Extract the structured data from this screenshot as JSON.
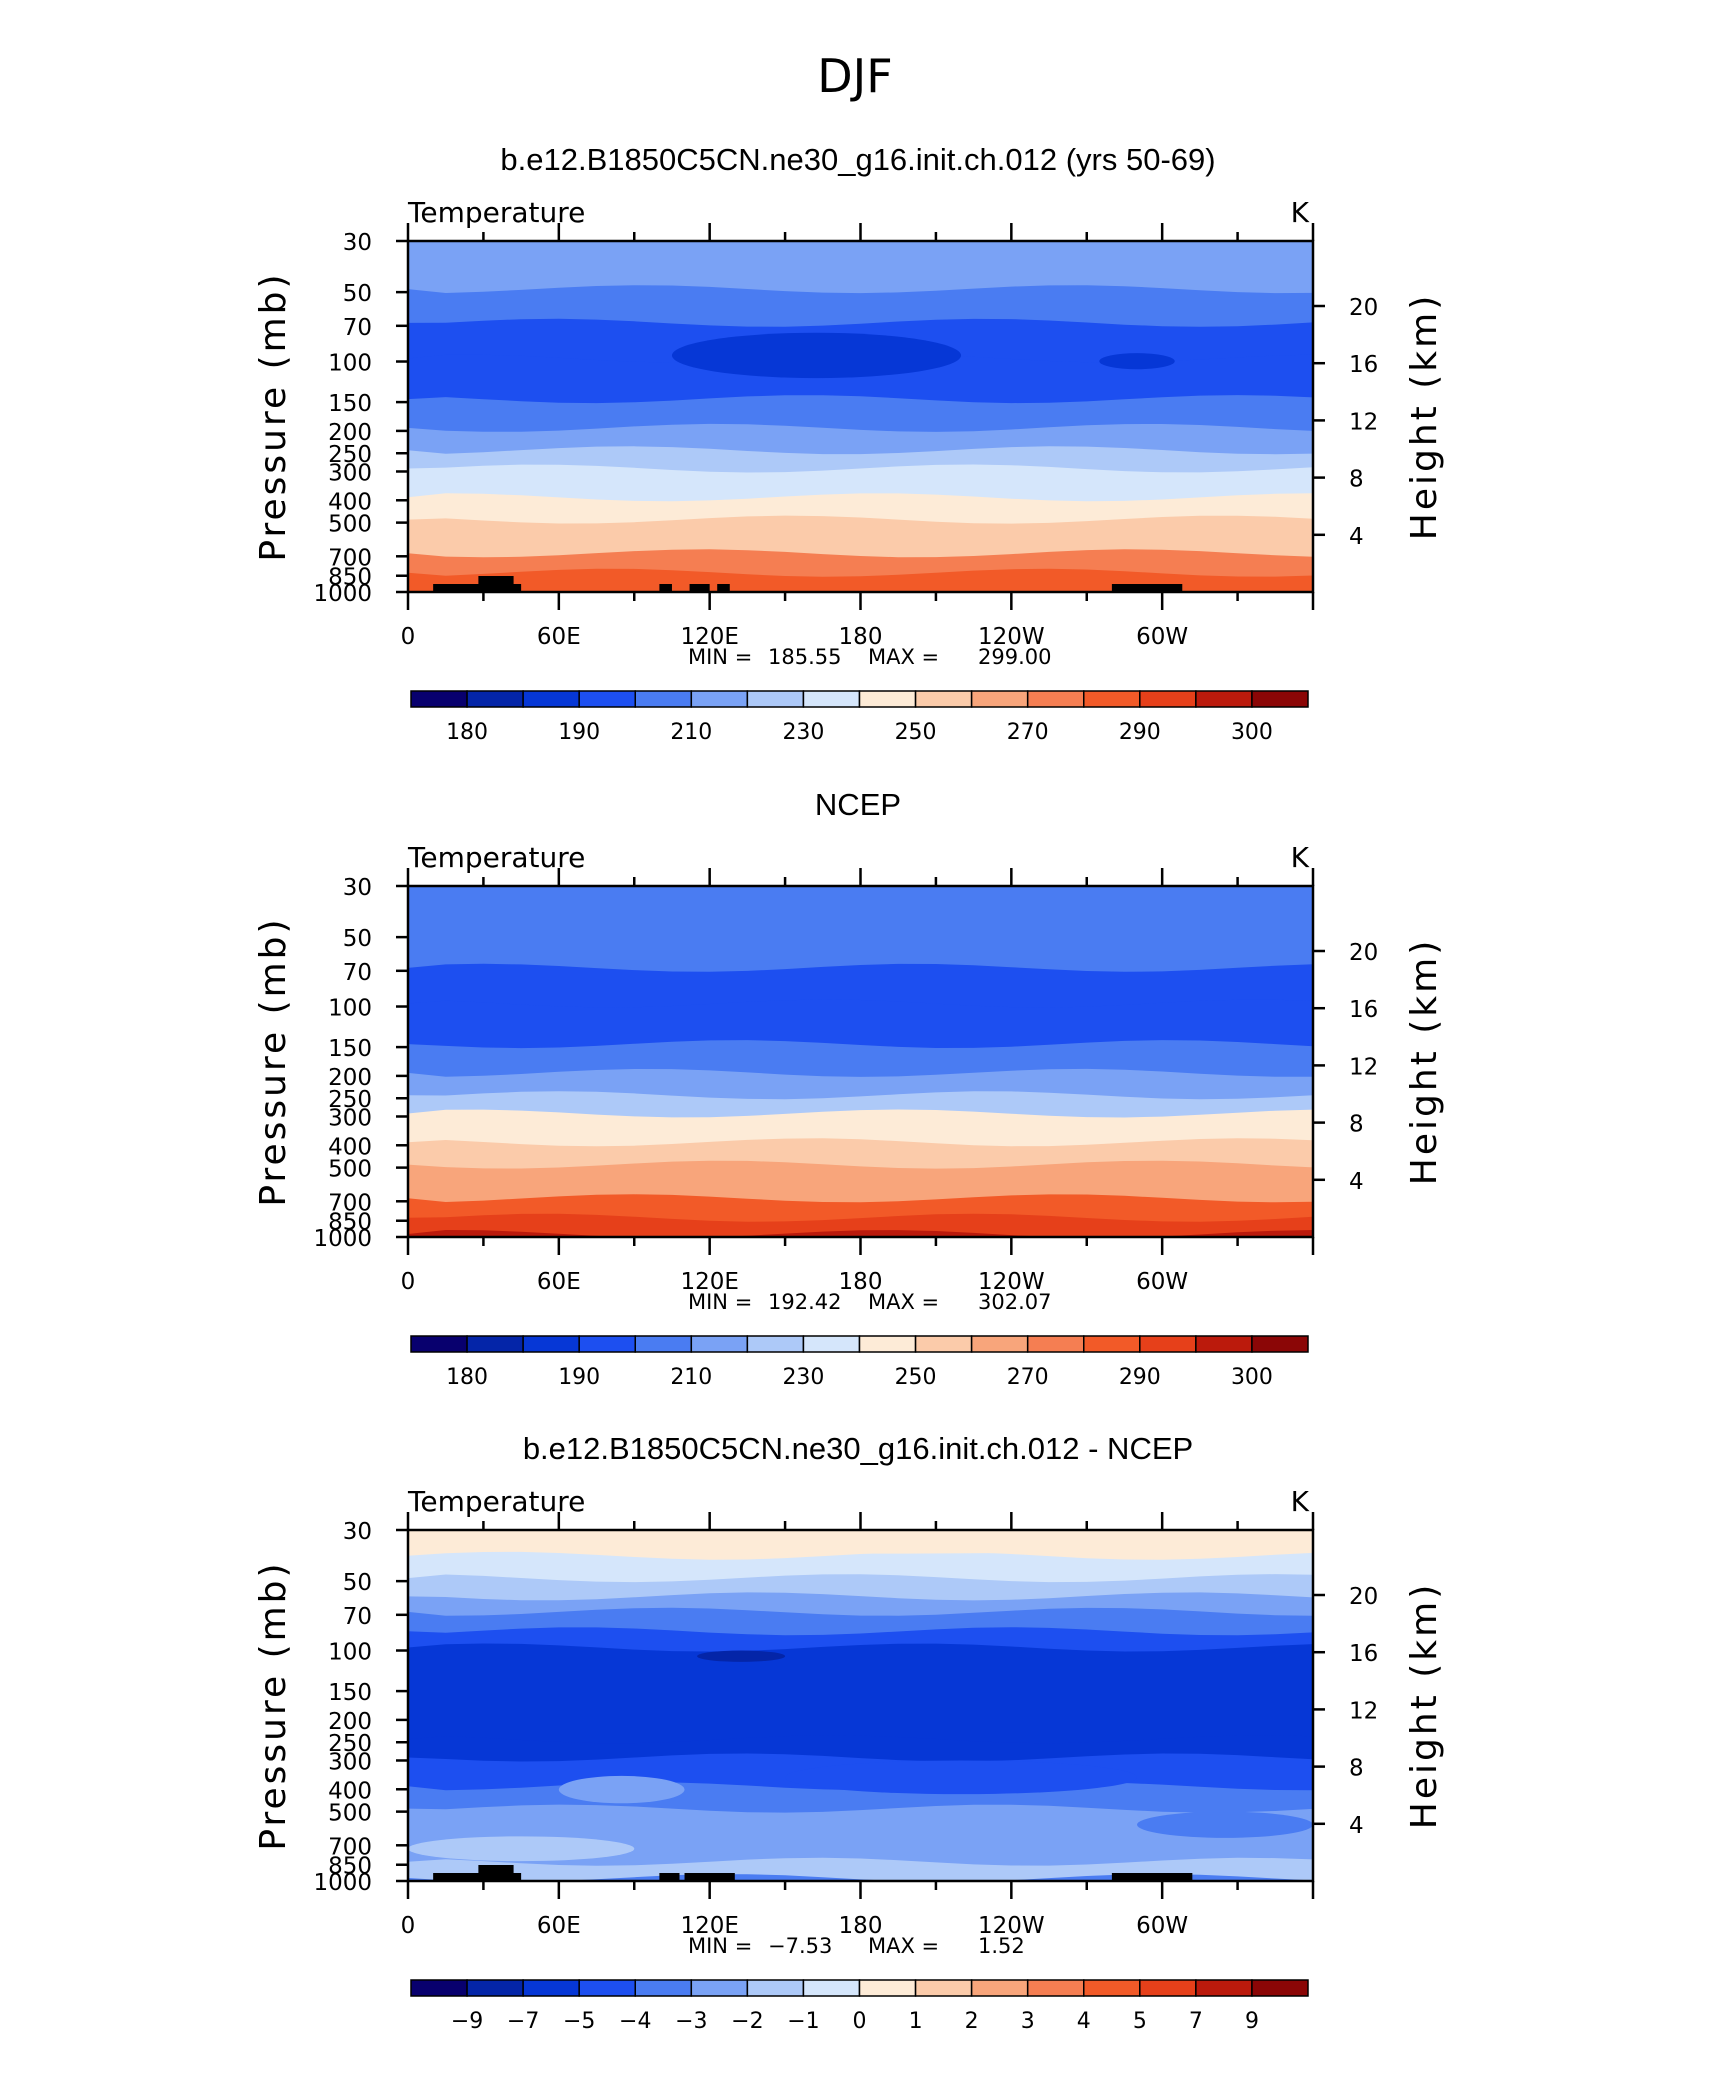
{
  "figure_title": "DJF",
  "chart_data": [
    {
      "type": "heatmap",
      "title": "b.e12.B1850C5CN.ne30_g16.init.ch.012 (yrs 50-69)",
      "left_string": "Temperature",
      "right_string": "K",
      "ylabel": "Pressure (mb)",
      "y2label": "Height (km)",
      "pressure_ticks": [
        "30",
        "50",
        "70",
        "100",
        "150",
        "200",
        "250",
        "300",
        "400",
        "500",
        "700",
        "850",
        "1000"
      ],
      "height_ticks": [
        "20",
        "16",
        "12",
        "8",
        "4"
      ],
      "longitude_ticks": [
        "0",
        "60E",
        "120E",
        "180",
        "120W",
        "60W"
      ],
      "stats": {
        "min_label": "MIN =",
        "min_value": "185.55",
        "max_label": "MAX =",
        "max_value": "299.00"
      },
      "colorbar_labels": [
        "180",
        "190",
        "210",
        "230",
        "250",
        "270",
        "290",
        "300"
      ],
      "level_colors": [
        "#08006e",
        "#0425a8",
        "#0637d6",
        "#1d4ff0",
        "#4a7cf2",
        "#7aa2f5",
        "#adc9f8",
        "#d5e6fb",
        "#fdebd7",
        "#fbcbaa",
        "#f8a57b",
        "#f57e52",
        "#f25a28",
        "#e6401a",
        "#bb1a0c",
        "#8b0606"
      ],
      "profile": [
        [
          "30",
          "#7aa2f5"
        ],
        [
          "50",
          "#4a7cf2"
        ],
        [
          "70",
          "#1d4ff0"
        ],
        [
          "100",
          "#1d4ff0"
        ],
        [
          "150",
          "#4a7cf2"
        ],
        [
          "200",
          "#7aa2f5"
        ],
        [
          "250",
          "#adc9f8"
        ],
        [
          "300",
          "#d5e6fb"
        ],
        [
          "400",
          "#fdebd7"
        ],
        [
          "500",
          "#fbcbaa"
        ],
        [
          "700",
          "#f57e52"
        ],
        [
          "850",
          "#f25a28"
        ],
        [
          "1000",
          "#f25a28"
        ]
      ],
      "features": [
        {
          "lon": [
            105,
            220
          ],
          "p": [
            75,
            118
          ],
          "color": "#0637d6"
        },
        {
          "lon": [
            275,
            305
          ],
          "p": [
            92,
            108
          ],
          "color": "#0637d6"
        }
      ],
      "topography": [
        [
          10,
          45
        ],
        [
          28,
          42
        ],
        [
          100,
          105
        ],
        [
          112,
          120
        ],
        [
          123,
          128
        ],
        [
          280,
          308
        ]
      ]
    },
    {
      "type": "heatmap",
      "title": "NCEP",
      "left_string": "Temperature",
      "right_string": "K",
      "ylabel": "Pressure (mb)",
      "y2label": "Height (km)",
      "pressure_ticks": [
        "30",
        "50",
        "70",
        "100",
        "150",
        "200",
        "250",
        "300",
        "400",
        "500",
        "700",
        "850",
        "1000"
      ],
      "height_ticks": [
        "20",
        "16",
        "12",
        "8",
        "4"
      ],
      "longitude_ticks": [
        "0",
        "60E",
        "120E",
        "180",
        "120W",
        "60W"
      ],
      "stats": {
        "min_label": "MIN =",
        "min_value": "192.42",
        "max_label": "MAX =",
        "max_value": "302.07"
      },
      "colorbar_labels": [
        "180",
        "190",
        "210",
        "230",
        "250",
        "270",
        "290",
        "300"
      ],
      "level_colors": [
        "#08006e",
        "#0425a8",
        "#0637d6",
        "#1d4ff0",
        "#4a7cf2",
        "#7aa2f5",
        "#adc9f8",
        "#d5e6fb",
        "#fdebd7",
        "#fbcbaa",
        "#f8a57b",
        "#f57e52",
        "#f25a28",
        "#e6401a",
        "#bb1a0c",
        "#8b0606"
      ],
      "profile": [
        [
          "30",
          "#4a7cf2"
        ],
        [
          "50",
          "#4a7cf2"
        ],
        [
          "70",
          "#1d4ff0"
        ],
        [
          "100",
          "#1d4ff0"
        ],
        [
          "150",
          "#4a7cf2"
        ],
        [
          "200",
          "#7aa2f5"
        ],
        [
          "250",
          "#adc9f8"
        ],
        [
          "300",
          "#fdebd7"
        ],
        [
          "400",
          "#fbcbaa"
        ],
        [
          "500",
          "#f8a57b"
        ],
        [
          "700",
          "#f25a28"
        ],
        [
          "850",
          "#e6401a"
        ],
        [
          "1000",
          "#bb1a0c"
        ]
      ],
      "features": [],
      "topography": []
    },
    {
      "type": "heatmap",
      "title": "b.e12.B1850C5CN.ne30_g16.init.ch.012 - NCEP",
      "left_string": "Temperature",
      "right_string": "K",
      "ylabel": "Pressure (mb)",
      "y2label": "Height (km)",
      "pressure_ticks": [
        "30",
        "50",
        "70",
        "100",
        "150",
        "200",
        "250",
        "300",
        "400",
        "500",
        "700",
        "850",
        "1000"
      ],
      "height_ticks": [
        "20",
        "16",
        "12",
        "8",
        "4"
      ],
      "longitude_ticks": [
        "0",
        "60E",
        "120E",
        "180",
        "120W",
        "60W"
      ],
      "stats": {
        "min_label": "MIN =",
        "min_value": "−7.53",
        "max_label": "MAX =",
        "max_value": "1.52"
      },
      "colorbar_labels": [
        "−9",
        "−7",
        "−5",
        "−4",
        "−3",
        "−2",
        "−1",
        "0",
        "1",
        "2",
        "3",
        "4",
        "5",
        "7",
        "9"
      ],
      "level_colors": [
        "#08006e",
        "#0425a8",
        "#0637d6",
        "#1d4ff0",
        "#4a7cf2",
        "#7aa2f5",
        "#adc9f8",
        "#d5e6fb",
        "#fdebd7",
        "#fbcbaa",
        "#f8a57b",
        "#f57e52",
        "#f25a28",
        "#e6401a",
        "#bb1a0c",
        "#8b0606"
      ],
      "profile": [
        [
          "30",
          "#fdebd7"
        ],
        [
          "40",
          "#d5e6fb"
        ],
        [
          "50",
          "#adc9f8"
        ],
        [
          "60",
          "#7aa2f5"
        ],
        [
          "70",
          "#4a7cf2"
        ],
        [
          "85",
          "#1d4ff0"
        ],
        [
          "100",
          "#0637d6"
        ],
        [
          "250",
          "#0637d6"
        ],
        [
          "300",
          "#1d4ff0"
        ],
        [
          "400",
          "#4a7cf2"
        ],
        [
          "500",
          "#7aa2f5"
        ],
        [
          "700",
          "#7aa2f5"
        ],
        [
          "850",
          "#adc9f8"
        ],
        [
          "1000",
          "#4a7cf2"
        ]
      ],
      "features": [
        {
          "lon": [
            0,
            360
          ],
          "p": [
            30,
            38
          ],
          "color": "#fdebd7"
        },
        {
          "lon": [
            115,
            150
          ],
          "p": [
            100,
            112
          ],
          "color": "#0425a8"
        },
        {
          "lon": [
            150,
            290
          ],
          "p": [
            300,
            420
          ],
          "color": "#1d4ff0"
        },
        {
          "lon": [
            60,
            110
          ],
          "p": [
            350,
            460
          ],
          "color": "#7aa2f5"
        },
        {
          "lon": [
            290,
            360
          ],
          "p": [
            500,
            650
          ],
          "color": "#4a7cf2"
        },
        {
          "lon": [
            0,
            90
          ],
          "p": [
            640,
            820
          ],
          "color": "#adc9f8"
        }
      ],
      "topography": [
        [
          10,
          45
        ],
        [
          28,
          42
        ],
        [
          100,
          108
        ],
        [
          110,
          130
        ],
        [
          280,
          312
        ]
      ]
    }
  ]
}
